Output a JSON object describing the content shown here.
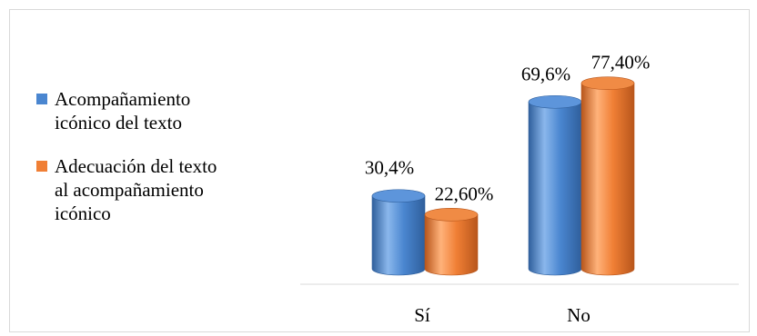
{
  "chart_data": {
    "type": "bar",
    "categories": [
      "Sí",
      "No"
    ],
    "series": [
      {
        "name": "Acompañamiento icónico del texto",
        "values": [
          30.4,
          69.6
        ],
        "labels": [
          "30,4%",
          "69,6%"
        ],
        "color": "#4a86d0"
      },
      {
        "name": "Adecuación del texto al acompañamiento icónico",
        "values": [
          22.6,
          77.4
        ],
        "labels": [
          "22,60%",
          "77,40%"
        ],
        "color": "#f07f35"
      }
    ],
    "ylim": [
      0,
      100
    ],
    "legend": "left",
    "grid": false
  },
  "legend": {
    "items": [
      {
        "lines": [
          "Acompañamiento",
          "icónico del texto"
        ],
        "color": "#4a86d0"
      },
      {
        "lines": [
          "Adecuación del texto",
          "al acompañamiento",
          "icónico"
        ],
        "color": "#f07f35"
      }
    ]
  }
}
